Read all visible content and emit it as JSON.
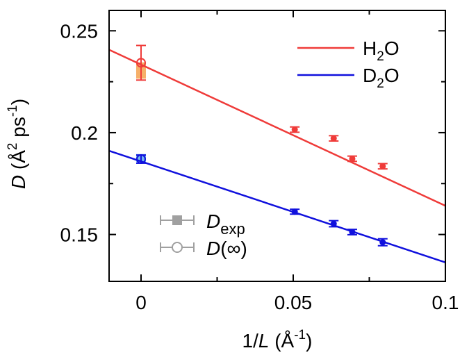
{
  "chart_data": {
    "type": "scatter",
    "xlabel": {
      "prefix": "1/",
      "var": "L",
      "unit_open": " (Å",
      "unit_sup": "-1",
      "unit_close": ")"
    },
    "ylabel": {
      "var": "D",
      "unit_open": " (Å",
      "sup1": "2",
      "mid": " ps",
      "sup2": "-1",
      "unit_close": ")"
    },
    "xlim": [
      -0.0105,
      0.1
    ],
    "ylim": [
      0.127,
      0.26
    ],
    "xticks": [
      0,
      0.05,
      0.1
    ],
    "xtick_labels": [
      "0",
      "0.05",
      "0.1"
    ],
    "yticks": [
      0.15,
      0.2,
      0.25
    ],
    "ytick_labels": [
      "0.15",
      "0.2",
      "0.25"
    ],
    "grid": false,
    "legend_lines": {
      "placement": "top-right",
      "entries": [
        {
          "series": "H2O",
          "main": "H",
          "sub": "2",
          "tail": "O",
          "color": "#ef3b39"
        },
        {
          "series": "D2O",
          "main": "D",
          "sub": "2",
          "tail": "O",
          "color": "#1010dd"
        }
      ]
    },
    "legend_markers": {
      "placement": "bottom-left",
      "color": "#a0a0a0",
      "entries": [
        {
          "marker": "filled-square",
          "var": "D",
          "sub": "exp",
          "suffix": ""
        },
        {
          "marker": "open-circle",
          "var": "D",
          "sub": "",
          "suffix": "(∞)"
        }
      ]
    },
    "series": [
      {
        "name": "H2O",
        "color": "#ef3b39",
        "points": [
          {
            "x": 0.0505,
            "y": 0.2015,
            "err": 0.0013
          },
          {
            "x": 0.0633,
            "y": 0.1972,
            "err": 0.0013
          },
          {
            "x": 0.0694,
            "y": 0.1872,
            "err": 0.0013
          },
          {
            "x": 0.0794,
            "y": 0.1835,
            "err": 0.0013
          }
        ],
        "fit": {
          "slope": -0.693,
          "intercept": 0.2334
        },
        "extrapolated": {
          "x": 0,
          "y": 0.2343,
          "err": 0.0085
        },
        "experimental": {
          "x": 0,
          "y": 0.2305,
          "err": 0.004,
          "color": "#f5a24f"
        }
      },
      {
        "name": "D2O",
        "color": "#1010dd",
        "points": [
          {
            "x": 0.0505,
            "y": 0.1612,
            "err": 0.0012
          },
          {
            "x": 0.0633,
            "y": 0.1553,
            "err": 0.0015
          },
          {
            "x": 0.0694,
            "y": 0.1512,
            "err": 0.0013
          },
          {
            "x": 0.0794,
            "y": 0.1462,
            "err": 0.0017
          }
        ],
        "fit": {
          "slope": -0.496,
          "intercept": 0.1859
        },
        "extrapolated": {
          "x": 0,
          "y": 0.187,
          "err": 0.002
        },
        "experimental": {
          "x": 0,
          "y": 0.1875,
          "err": 0.002,
          "color": "#5aa9ea"
        }
      }
    ]
  }
}
